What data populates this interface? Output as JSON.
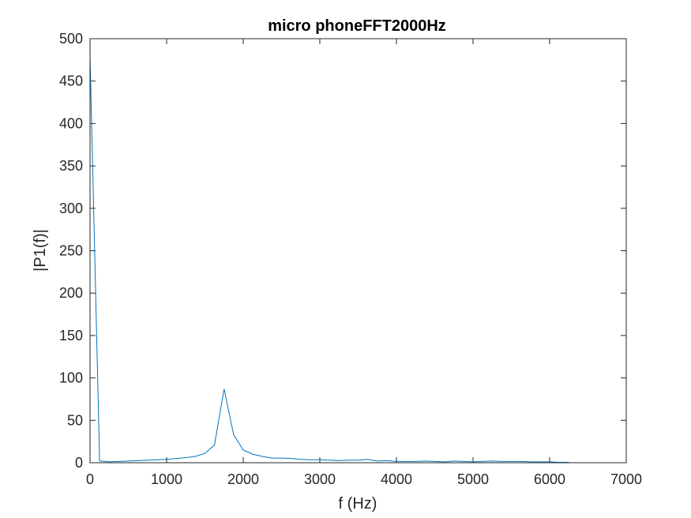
{
  "chart_data": {
    "type": "line",
    "title": "micro phoneFFT2000Hz",
    "xlabel": "f (Hz)",
    "ylabel": "|P1(f)|",
    "xlim": [
      0,
      7000
    ],
    "ylim": [
      0,
      500
    ],
    "xticks": [
      0,
      1000,
      2000,
      3000,
      4000,
      5000,
      6000,
      7000
    ],
    "yticks": [
      0,
      50,
      100,
      150,
      200,
      250,
      300,
      350,
      400,
      450,
      500
    ],
    "grid": false,
    "line_color": "#0072BD",
    "axis_color": "#262626",
    "series": [
      {
        "x": [
          0,
          125,
          250,
          375,
          500,
          625,
          750,
          875,
          1000,
          1125,
          1250,
          1375,
          1500,
          1625,
          1750,
          1875,
          2000,
          2125,
          2250,
          2375,
          2500,
          2625,
          2750,
          2875,
          3000,
          3125,
          3250,
          3375,
          3500,
          3625,
          3750,
          3875,
          4000,
          4125,
          4250,
          4375,
          4500,
          4625,
          4750,
          4875,
          5000,
          5125,
          5250,
          5375,
          5500,
          5625,
          5750,
          5875,
          6000,
          6125,
          6250
        ],
        "y": [
          480,
          2,
          1,
          1.5,
          2,
          2.5,
          3,
          3.5,
          4,
          5,
          6,
          7.5,
          11,
          21,
          87,
          33,
          15,
          10,
          7.5,
          5.5,
          5.5,
          5,
          4,
          3.5,
          3.5,
          3,
          2.5,
          3,
          3,
          4,
          2,
          2.5,
          1.5,
          1.5,
          1.5,
          2,
          1.5,
          1,
          2,
          1.5,
          1,
          1.5,
          2,
          1.5,
          1.5,
          1.5,
          1,
          1,
          1,
          0.5,
          0.5
        ]
      }
    ]
  }
}
